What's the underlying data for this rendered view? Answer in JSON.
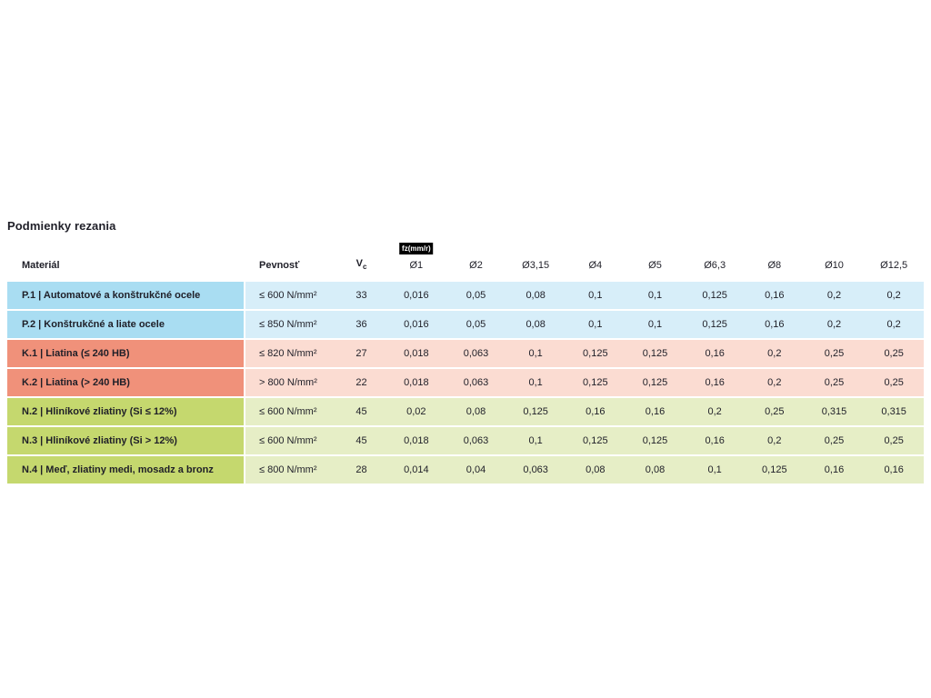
{
  "page": {
    "title": "Podmienky rezania"
  },
  "table": {
    "fz_badge": "fz(mm/r)",
    "headers": {
      "material": "Materiál",
      "strength": "Pevnosť",
      "vc": "V",
      "vc_sub": "c",
      "diameters": [
        "Ø1",
        "Ø2",
        "Ø3,15",
        "Ø4",
        "Ø5",
        "Ø6,3",
        "Ø8",
        "Ø10",
        "Ø12,5"
      ]
    },
    "groups": [
      {
        "group_id": "P",
        "color_strong": "#a9ddf2",
        "color_light": "#d7eef9",
        "rows": [
          {
            "material": "P.1 | Automatové a konštrukčné ocele",
            "strength": "≤ 600 N/mm²",
            "vc": "33",
            "fz": [
              "0,016",
              "0,05",
              "0,08",
              "0,1",
              "0,1",
              "0,125",
              "0,16",
              "0,2",
              "0,2"
            ]
          },
          {
            "material": "P.2 | Konštrukčné a liate ocele",
            "strength": "≤ 850 N/mm²",
            "vc": "36",
            "fz": [
              "0,016",
              "0,05",
              "0,08",
              "0,1",
              "0,1",
              "0,125",
              "0,16",
              "0,2",
              "0,2"
            ]
          }
        ]
      },
      {
        "group_id": "K",
        "color_strong": "#f0917a",
        "color_light": "#fbdcd2",
        "rows": [
          {
            "material": "K.1 | Liatina (≤ 240 HB)",
            "strength": "≤ 820 N/mm²",
            "vc": "27",
            "fz": [
              "0,018",
              "0,063",
              "0,1",
              "0,125",
              "0,125",
              "0,16",
              "0,2",
              "0,25",
              "0,25"
            ]
          },
          {
            "material": "K.2 | Liatina (> 240 HB)",
            "strength": "> 800 N/mm²",
            "vc": "22",
            "fz": [
              "0,018",
              "0,063",
              "0,1",
              "0,125",
              "0,125",
              "0,16",
              "0,2",
              "0,25",
              "0,25"
            ]
          }
        ]
      },
      {
        "group_id": "N",
        "color_strong": "#c5d86e",
        "color_light": "#e6eec6",
        "rows": [
          {
            "material": "N.2 | Hliníkové zliatiny (Si ≤ 12%)",
            "strength": "≤ 600 N/mm²",
            "vc": "45",
            "fz": [
              "0,02",
              "0,08",
              "0,125",
              "0,16",
              "0,16",
              "0,2",
              "0,25",
              "0,315",
              "0,315"
            ]
          },
          {
            "material": "N.3 | Hliníkové zliatiny (Si > 12%)",
            "strength": "≤ 600 N/mm²",
            "vc": "45",
            "fz": [
              "0,018",
              "0,063",
              "0,1",
              "0,125",
              "0,125",
              "0,16",
              "0,2",
              "0,25",
              "0,25"
            ]
          },
          {
            "material": "N.4 | Meď, zliatiny medi, mosadz a bronz",
            "strength": "≤ 800 N/mm²",
            "vc": "28",
            "fz": [
              "0,014",
              "0,04",
              "0,063",
              "0,08",
              "0,08",
              "0,1",
              "0,125",
              "0,16",
              "0,16"
            ]
          }
        ]
      }
    ]
  }
}
